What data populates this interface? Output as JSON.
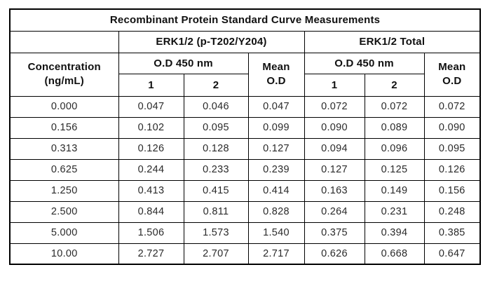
{
  "colors": {
    "background": "#ffffff",
    "border": "#000000",
    "header_text": "#101010",
    "data_text": "#2a2a2a"
  },
  "header": {
    "title": "Recombinant Protein Standard Curve Measurements",
    "concentration": "Concentration\n(ng/mL)",
    "group_phospho": "ERK1/2 (p-T202/Y204)",
    "group_total": "ERK1/2 Total",
    "od": "O.D 450 nm",
    "mean": "Mean\nO.D",
    "rep1": "1",
    "rep2": "2"
  },
  "chart_data": {
    "type": "table",
    "title": "Recombinant Protein Standard Curve Measurements",
    "column_groups": [
      "",
      "ERK1/2 (p-T202/Y204)",
      "ERK1/2 Total"
    ],
    "columns": [
      {
        "group": "",
        "label": "Concentration (ng/mL)"
      },
      {
        "group": "ERK1/2 (p-T202/Y204)",
        "label": "O.D 450 nm 1"
      },
      {
        "group": "ERK1/2 (p-T202/Y204)",
        "label": "O.D 450 nm 2"
      },
      {
        "group": "ERK1/2 (p-T202/Y204)",
        "label": "Mean O.D"
      },
      {
        "group": "ERK1/2 Total",
        "label": "O.D 450 nm 1"
      },
      {
        "group": "ERK1/2 Total",
        "label": "O.D 450 nm 2"
      },
      {
        "group": "ERK1/2 Total",
        "label": "Mean O.D"
      }
    ],
    "rows": [
      [
        "0.000",
        "0.047",
        "0.046",
        "0.047",
        "0.072",
        "0.072",
        "0.072"
      ],
      [
        "0.156",
        "0.102",
        "0.095",
        "0.099",
        "0.090",
        "0.089",
        "0.090"
      ],
      [
        "0.313",
        "0.126",
        "0.128",
        "0.127",
        "0.094",
        "0.096",
        "0.095"
      ],
      [
        "0.625",
        "0.244",
        "0.233",
        "0.239",
        "0.127",
        "0.125",
        "0.126"
      ],
      [
        "1.250",
        "0.413",
        "0.415",
        "0.414",
        "0.163",
        "0.149",
        "0.156"
      ],
      [
        "2.500",
        "0.844",
        "0.811",
        "0.828",
        "0.264",
        "0.231",
        "0.248"
      ],
      [
        "5.000",
        "1.506",
        "1.573",
        "1.540",
        "0.375",
        "0.394",
        "0.385"
      ],
      [
        "10.00",
        "2.727",
        "2.707",
        "2.717",
        "0.626",
        "0.668",
        "0.647"
      ]
    ]
  }
}
